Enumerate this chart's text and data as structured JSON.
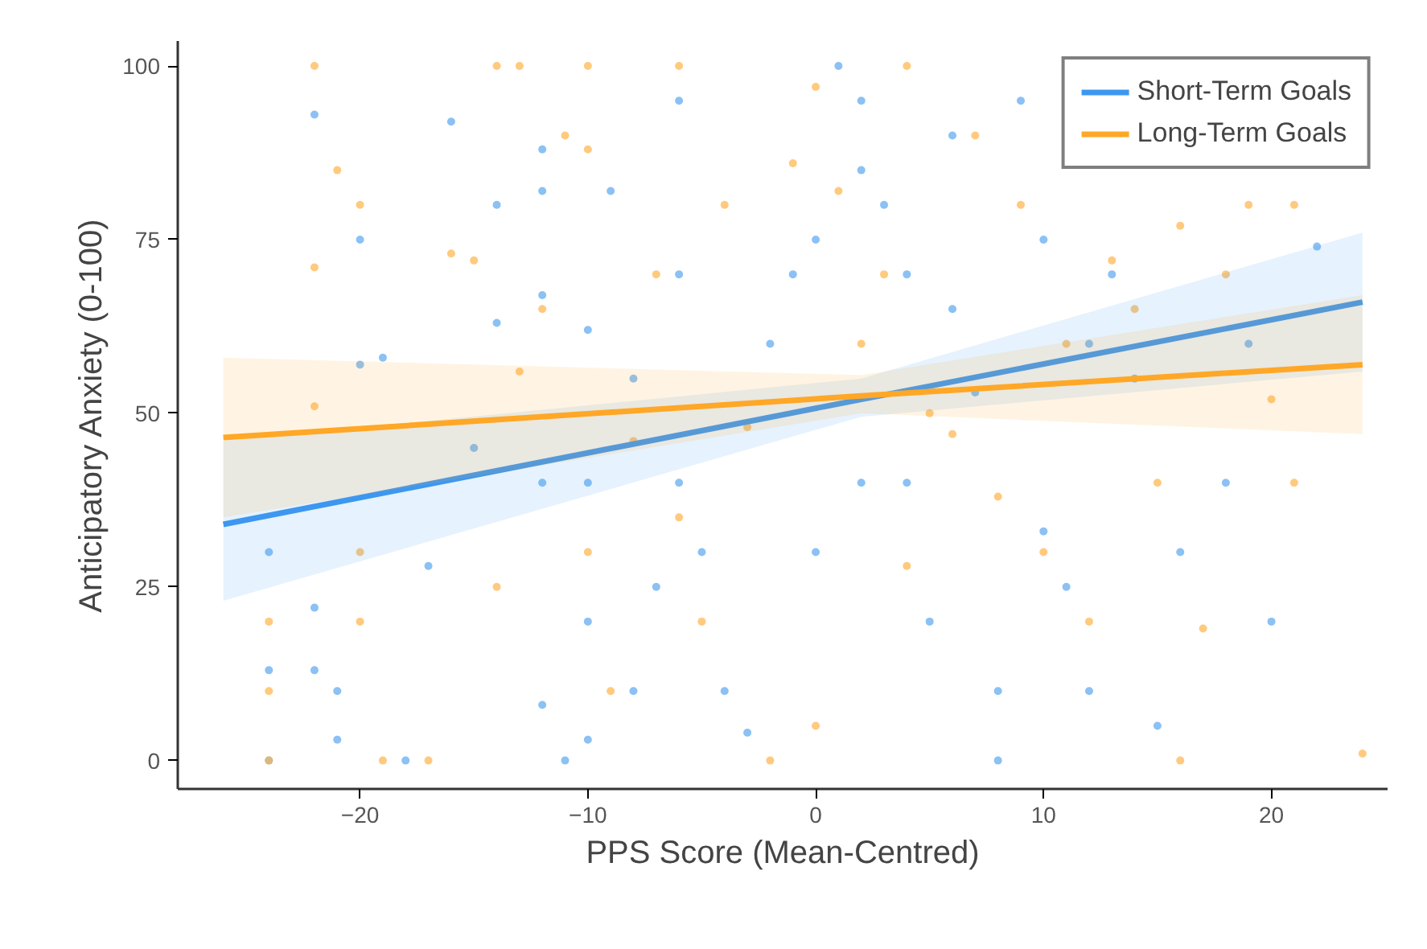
{
  "chart_data": {
    "type": "scatter",
    "xlabel": "PPS Score (Mean-Centred)",
    "ylabel": "Anticipatory Anxiety (0-100)",
    "xlim": [
      -28,
      25.1
    ],
    "ylim": [
      -4.1,
      103.6
    ],
    "xticks": [
      -20,
      -10,
      0,
      10,
      20
    ],
    "yticks": [
      0,
      25,
      50,
      75,
      100
    ],
    "grid": false,
    "legend": "top right",
    "series": [
      {
        "marker": "circle",
        "color": "#5aa6f0",
        "x": [
          -24,
          -24,
          -24,
          -22,
          -22,
          -22,
          -21,
          -21,
          -20,
          -20,
          -19,
          -18,
          -17,
          -16,
          -15,
          -14,
          -14,
          -12,
          -12,
          -12,
          -12,
          -12,
          -11,
          -10,
          -10,
          -10,
          -10,
          -9,
          -8,
          -8,
          -7,
          -6,
          -6,
          -6,
          -5,
          -4,
          -3,
          -2,
          -1,
          0,
          0,
          1,
          2,
          2,
          2,
          3,
          4,
          4,
          5,
          6,
          6,
          7,
          8,
          8,
          9,
          10,
          10,
          11,
          12,
          12,
          13,
          14,
          16,
          18,
          20,
          22,
          19,
          15
        ],
        "values": [
          0,
          13,
          30,
          93,
          22,
          13,
          10,
          3,
          57,
          75,
          58,
          0,
          28,
          92,
          45,
          80,
          63,
          88,
          82,
          67,
          40,
          8,
          0,
          62,
          40,
          20,
          3,
          82,
          55,
          10,
          25,
          95,
          70,
          40,
          30,
          10,
          4,
          60,
          70,
          75,
          30,
          100,
          95,
          85,
          40,
          80,
          70,
          40,
          20,
          90,
          65,
          53,
          10,
          0,
          95,
          75,
          33,
          25,
          60,
          10,
          70,
          55,
          30,
          40,
          20,
          74,
          60,
          5
        ]
      },
      {
        "marker": "circle",
        "color": "#ffb347",
        "x": [
          -24,
          -24,
          -24,
          -22,
          -22,
          -22,
          -21,
          -20,
          -20,
          -20,
          -19,
          -17,
          -16,
          -15,
          -14,
          -14,
          -13,
          -13,
          -12,
          -11,
          -10,
          -10,
          -10,
          -9,
          -8,
          -7,
          -6,
          -6,
          -5,
          -4,
          -3,
          -2,
          -1,
          0,
          0,
          1,
          2,
          3,
          4,
          4,
          5,
          6,
          7,
          8,
          9,
          10,
          11,
          12,
          13,
          14,
          15,
          16,
          16,
          18,
          19,
          21,
          21,
          24,
          20,
          17
        ],
        "values": [
          20,
          10,
          0,
          100,
          71,
          51,
          85,
          80,
          30,
          20,
          0,
          0,
          73,
          72,
          100,
          25,
          100,
          56,
          65,
          90,
          100,
          88,
          30,
          10,
          46,
          70,
          100,
          35,
          20,
          80,
          48,
          0,
          86,
          97,
          5,
          82,
          60,
          70,
          100,
          28,
          50,
          47,
          90,
          38,
          80,
          30,
          60,
          20,
          72,
          65,
          40,
          77,
          0,
          70,
          80,
          80,
          40,
          1,
          52,
          19
        ]
      },
      {
        "type": "line",
        "name": "Short-Term Goals",
        "color": "#3d97f0",
        "x": [
          -26,
          2,
          24
        ],
        "values": [
          34,
          52,
          66
        ],
        "lower": [
          23,
          49.5,
          56
        ],
        "upper": [
          46,
          55,
          76
        ]
      },
      {
        "type": "line",
        "name": "Long-Term Goals",
        "color": "#ffa726",
        "x": [
          -26,
          2,
          24
        ],
        "values": [
          46.5,
          52.5,
          57
        ],
        "lower": [
          35,
          50,
          47
        ],
        "upper": [
          58,
          55.5,
          67
        ]
      }
    ]
  }
}
